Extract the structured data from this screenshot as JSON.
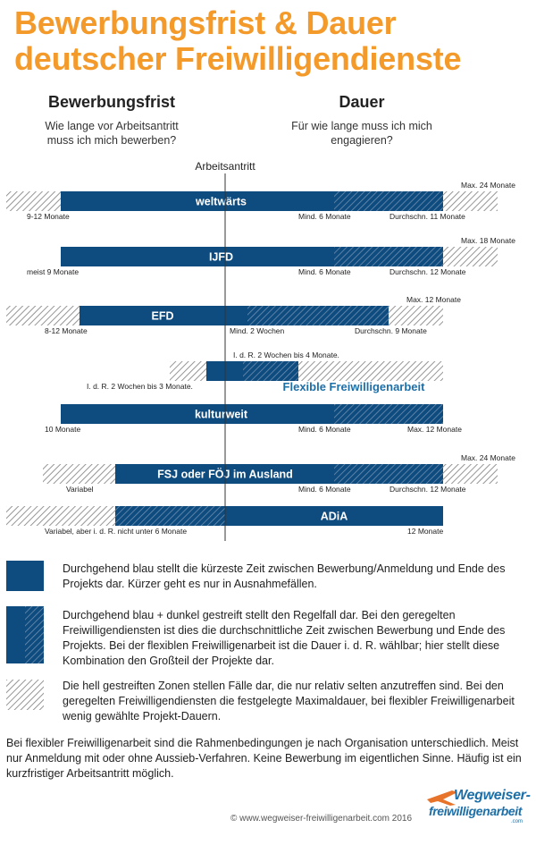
{
  "title_line1": "Bewerbungsfrist & Dauer",
  "title_line2": "deutscher Freiwilligendienste",
  "left_heading": "Bewerbungsfrist",
  "left_sub_line1": "Wie lange vor Arbeitsantritt",
  "left_sub_line2": "muss ich mich bewerben?",
  "right_heading": "Dauer",
  "right_sub_line1": "Für wie lange muss ich mich",
  "right_sub_line2": "engagieren?",
  "colors": {
    "solid": "#0e4b7f",
    "title": "#f39a2b",
    "dashedTop": "#1d6fa8"
  },
  "chart_data": {
    "type": "bar",
    "center_label": "Arbeitsantritt",
    "rows": [
      {
        "name": "weltwärts",
        "hatch_light": [
          [
            7,
            68
          ],
          [
            496,
            557
          ]
        ],
        "solid": [
          68,
          374
        ],
        "hatch_dark": [
          374,
          496
        ],
        "labels": [
          {
            "text": "9-12 Monate",
            "pos": "below-left",
            "at": 30
          },
          {
            "text": "Mind. 6 Monate",
            "pos": "below",
            "at": 334
          },
          {
            "text": "Durchschn. 11 Monate",
            "pos": "below",
            "at": 436
          },
          {
            "text": "Max. 24 Monate",
            "pos": "above",
            "at": 516
          }
        ]
      },
      {
        "name": "IJFD",
        "hatch_light": [
          [
            496,
            557
          ]
        ],
        "solid": [
          68,
          374
        ],
        "hatch_dark": [
          374,
          496
        ],
        "labels": [
          {
            "text": "meist 9 Monate",
            "pos": "below",
            "at": 30
          },
          {
            "text": "Mind. 6 Monate",
            "pos": "below",
            "at": 334
          },
          {
            "text": "Durchschn. 12 Monate",
            "pos": "below",
            "at": 436
          },
          {
            "text": "Max. 18 Monate",
            "pos": "above",
            "at": 516
          }
        ]
      },
      {
        "name": "EFD",
        "hatch_light": [
          [
            7,
            89
          ],
          [
            435,
            496
          ]
        ],
        "solid": [
          89,
          277
        ],
        "hatch_dark": [
          277,
          435
        ],
        "labels": [
          {
            "text": "8-12 Monate",
            "pos": "below",
            "at": 50
          },
          {
            "text": "Mind. 2 Wochen",
            "pos": "below",
            "at": 257
          },
          {
            "text": "Durchschn. 9 Monate",
            "pos": "below",
            "at": 397
          },
          {
            "text": "Max. 12 Monate",
            "pos": "above",
            "at": 455
          }
        ]
      },
      {
        "name": "Flexible Freiwilligenarbeit",
        "hatch_light": [
          [
            190,
            231
          ],
          [
            334,
            496
          ]
        ],
        "solid": [
          231,
          272
        ],
        "hatch_dark": [
          272,
          334
        ],
        "outside_label": true,
        "labels": [
          {
            "text": "I. d. R. 2 Wochen bis 4 Monate.",
            "pos": "above",
            "at": 261
          },
          {
            "text": "I. d. R. 2 Wochen bis 3 Monate.",
            "pos": "below",
            "at": 97
          }
        ]
      },
      {
        "name": "kulturweit",
        "hatch_light": [],
        "solid": [
          68,
          374
        ],
        "hatch_dark": [
          374,
          496
        ],
        "labels": [
          {
            "text": "10 Monate",
            "pos": "below",
            "at": 50
          },
          {
            "text": "Mind. 6 Monate",
            "pos": "below",
            "at": 334
          },
          {
            "text": "Max. 12 Monate",
            "pos": "below",
            "at": 456
          }
        ]
      },
      {
        "name": "FSJ oder FÖJ im Ausland",
        "hatch_light": [
          [
            48,
            129
          ],
          [
            496,
            557
          ]
        ],
        "solid": [
          129,
          374
        ],
        "hatch_dark": [
          374,
          496
        ],
        "labels": [
          {
            "text": "Variabel",
            "pos": "below",
            "at": 74
          },
          {
            "text": "Mind. 6 Monate",
            "pos": "below",
            "at": 334
          },
          {
            "text": "Durchschn. 12 Monate",
            "pos": "below",
            "at": 436
          },
          {
            "text": "Max. 24 Monate",
            "pos": "above",
            "at": 516
          }
        ]
      },
      {
        "name": "ADiA",
        "hatch_light": [
          [
            7,
            129
          ]
        ],
        "hatch_dark": [
          129,
          252
        ],
        "solid": [
          252,
          496
        ],
        "labels": [
          {
            "text": "Variabel, aber i. d. R. nicht unter 6 Monate",
            "pos": "below",
            "at": 50
          },
          {
            "text": "12 Monate",
            "pos": "below",
            "at": 456
          }
        ]
      }
    ]
  },
  "legend": [
    {
      "style": "solid",
      "text": "Durchgehend  blau  stellt die kürzeste Zeit zwischen Bewerbung/Anmeldung  und Ende des Projekts dar. Kürzer geht es nur in Ausnahmefällen."
    },
    {
      "style": "solid-dark",
      "text": "Durchgehend  blau + dunkel gestreift  stellt den Regelfall  dar. Bei den geregelten Freiwilligendiensten  ist dies die durchschnittliche Zeit zwischen Bewerbung  und Ende des Projekts. Bei der flexiblen Freiwilligenarbeit  ist die Dauer  i. d. R.  wählbar;  hier stellt diese Kombination  den Großteil der Projekte dar."
    },
    {
      "style": "light",
      "text": "Die hell gestreiften Zonen  stellen Fälle dar, die nur relativ  selten anzutreffen  sind. Bei den geregelten  Freiwilligendiensten  die festgelegte Maximaldauer,  bei flexibler Freiwilligenarbeit  wenig  gewählte Projekt-Dauern."
    }
  ],
  "footnote": "Bei flexibler Freiwilligenarbeit  sind die Rahmenbedingungen  je nach Organisation unterschiedlich. Meist nur Anmeldung  mit oder  ohne Aussieb-Verfahren.  Keine Bewerbung  im eigentlichen Sinne. Häufig ist ein kurzfristiger  Arbeitsantritt  möglich.",
  "copyright": "© www.wegweiser-freiwilligenarbeit.com 2016",
  "logo_top": "Wegweiser-",
  "logo_bottom": "freiwilligenarbeit",
  "logo_com": ".com"
}
